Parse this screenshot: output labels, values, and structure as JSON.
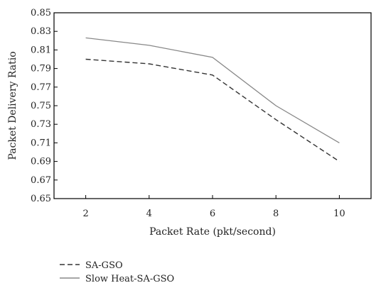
{
  "chart_data": {
    "type": "line",
    "xlabel": "Packet Rate (pkt/second)",
    "ylabel": "Packet Delivery Ratio",
    "x": [
      2,
      4,
      6,
      8,
      10
    ],
    "xticks": [
      "2",
      "4",
      "6",
      "8",
      "10"
    ],
    "xlim": [
      1,
      11
    ],
    "yticks": [
      "0.65",
      "0.67",
      "0.69",
      "0.71",
      "0.73",
      "0.75",
      "0.77",
      "0.79",
      "0.81",
      "0.83",
      "0.85"
    ],
    "ylim": [
      0.65,
      0.85
    ],
    "grid": false,
    "legend_position": "bottom-left",
    "series": [
      {
        "name": "SA-GSO",
        "values": [
          0.8,
          0.795,
          0.783,
          0.735,
          0.69
        ],
        "style": "dashed",
        "color": "#333333"
      },
      {
        "name": "Slow Heat-SA-GSO",
        "values": [
          0.823,
          0.815,
          0.802,
          0.75,
          0.71
        ],
        "style": "solid",
        "color": "#888888"
      }
    ]
  }
}
